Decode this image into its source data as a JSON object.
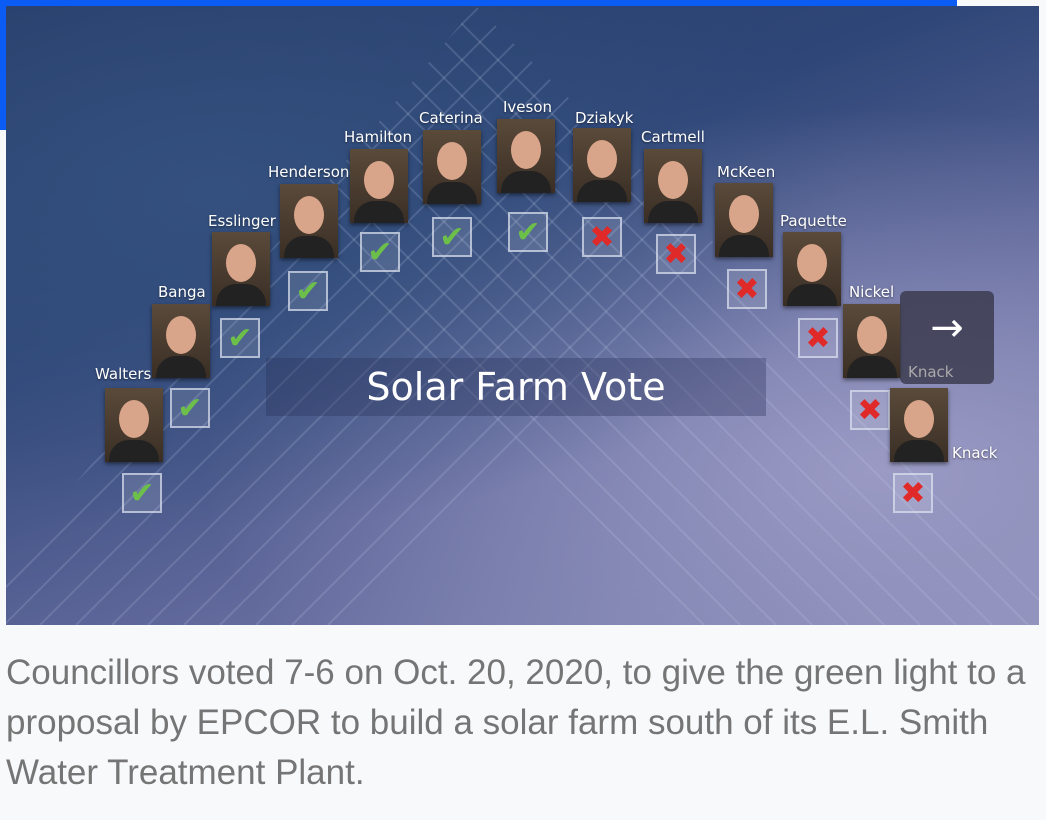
{
  "graphic": {
    "title": "Solar Farm Vote",
    "colors": {
      "yes": "#6cc04a",
      "no": "#e02a2a",
      "accent_bar": "#0a5cf5"
    },
    "councillors": [
      {
        "name": "Walters",
        "vote": "yes"
      },
      {
        "name": "Banga",
        "vote": "yes"
      },
      {
        "name": "Esslinger",
        "vote": "yes"
      },
      {
        "name": "Henderson",
        "vote": "yes"
      },
      {
        "name": "Hamilton",
        "vote": "yes"
      },
      {
        "name": "Caterina",
        "vote": "yes"
      },
      {
        "name": "Iveson",
        "vote": "yes"
      },
      {
        "name": "Dziakyk",
        "vote": "no"
      },
      {
        "name": "Cartmell",
        "vote": "no"
      },
      {
        "name": "McKeen",
        "vote": "no"
      },
      {
        "name": "Paquette",
        "vote": "no"
      },
      {
        "name": "Nickel",
        "vote": "no"
      },
      {
        "name": "Knack",
        "vote": "no"
      }
    ]
  },
  "next_button": {
    "icon": "arrow-right-icon",
    "label": "Knack"
  },
  "caption": "Councillors voted 7-6 on Oct. 20, 2020, to give the green light to a proposal by EPCOR to build a solar farm south of its E.L. Smith Water Treatment Plant."
}
